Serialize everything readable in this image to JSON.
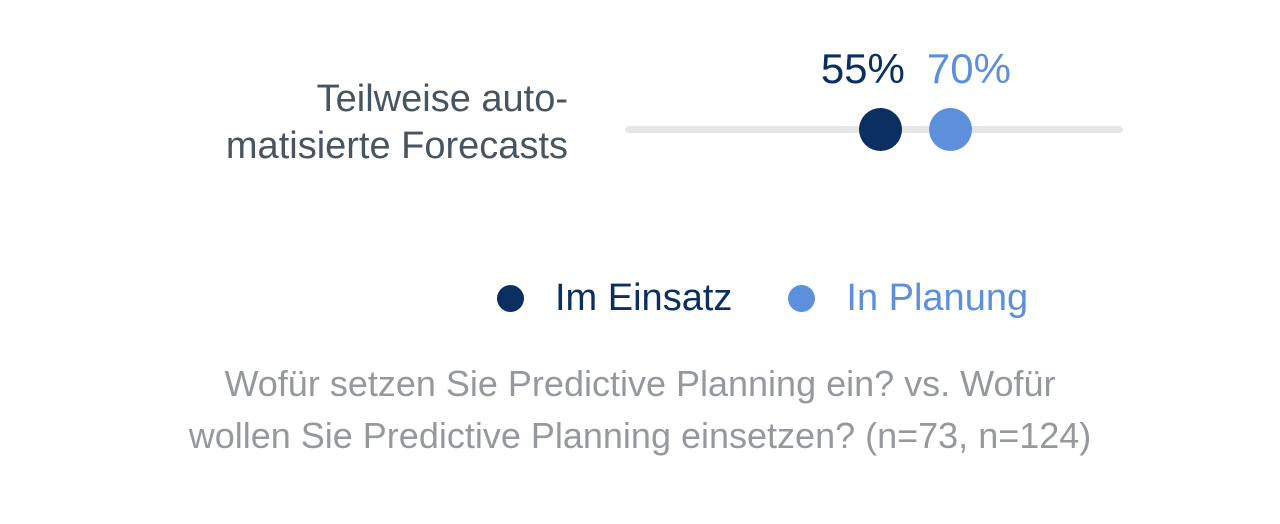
{
  "page": {
    "background": "#ffffff"
  },
  "colors": {
    "navy": "#0a2f60",
    "blue": "#5c90dd",
    "category_text": "#475560",
    "caption_text": "#95999e",
    "track": "#e4e6e8"
  },
  "chart_data": {
    "type": "scatter",
    "subtype": "dot-plot-single-row",
    "category": "Teilweise auto-\nmatisierte Forecasts",
    "axis": {
      "min_percent": 0,
      "max_percent": 100,
      "gridlines": false
    },
    "series": [
      {
        "name": "Im Einsatz",
        "value_percent": 55,
        "value_label": "55%",
        "color": "#0a2f60",
        "n": 73
      },
      {
        "name": "In Planung",
        "value_percent": 70,
        "value_label": "70%",
        "color": "#5c90dd",
        "n": 124
      }
    ],
    "legend_position": "bottom",
    "caption": "Wofür setzen Sie Predictive Planning ein? vs. Wofür\nwollen Sie Predictive Planning einsetzen? (n=73, n=124)"
  }
}
